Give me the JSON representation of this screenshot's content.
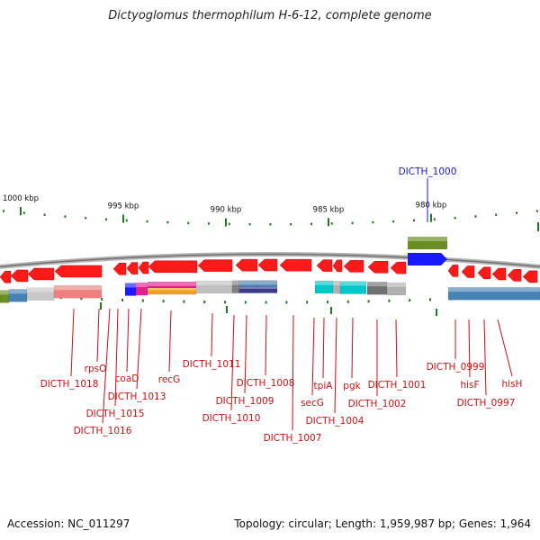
{
  "title": "Dictyoglomus thermophilum H-6-12, complete genome",
  "accession_text": "Accession: NC_011297",
  "summary_text": "Topology: circular; Length: 1,959,987 bp; Genes: 1,964",
  "colors": {
    "forward_gene": "#ff1a1a",
    "reverse_gene": "#1a1aff",
    "highlight_label": "#1a1acc",
    "label": "#cc1111",
    "tick": "#1d7a1d",
    "backbone": "#8a8a8a"
  },
  "scale": {
    "unit": "kbp",
    "major_ticks": [
      {
        "label": "1000 kbp",
        "position_kbp": 1000
      },
      {
        "label": "995 kbp",
        "position_kbp": 995
      },
      {
        "label": "990 kbp",
        "position_kbp": 990
      },
      {
        "label": "985 kbp",
        "position_kbp": 985
      },
      {
        "label": "980 kbp",
        "position_kbp": 980
      }
    ]
  },
  "highlighted_gene": {
    "label": "DICTH_1000",
    "strand": "reverse"
  },
  "gene_labels": [
    {
      "label": "DICTH_1018"
    },
    {
      "label": "rpsO"
    },
    {
      "label": "DICTH_1016"
    },
    {
      "label": "DICTH_1015"
    },
    {
      "label": "coaD"
    },
    {
      "label": "DICTH_1013"
    },
    {
      "label": "recG"
    },
    {
      "label": "DICTH_1011"
    },
    {
      "label": "DICTH_1010"
    },
    {
      "label": "DICTH_1009"
    },
    {
      "label": "DICTH_1008"
    },
    {
      "label": "DICTH_1007"
    },
    {
      "label": "secG"
    },
    {
      "label": "tpiA"
    },
    {
      "label": "DICTH_1004"
    },
    {
      "label": "pgk"
    },
    {
      "label": "DICTH_1002"
    },
    {
      "label": "DICTH_1001"
    },
    {
      "label": "DICTH_0999"
    },
    {
      "label": "hisF"
    },
    {
      "label": "DICTH_0997"
    },
    {
      "label": "hisH"
    }
  ]
}
